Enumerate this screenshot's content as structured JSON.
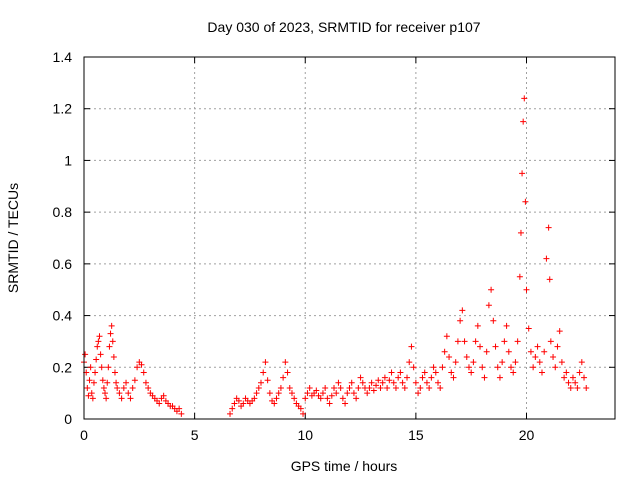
{
  "chart_data": {
    "type": "scatter",
    "title": "Day 030 of 2023, SRMTID for receiver p107",
    "xlabel": "GPS time / hours",
    "ylabel": "SRMTID / TECUs",
    "xlim": [
      0,
      24
    ],
    "ylim": [
      0,
      1.4
    ],
    "grid": true,
    "marker": "+",
    "color": "#ff0000",
    "x_ticks": [
      0,
      5,
      10,
      15,
      20
    ],
    "x_tick_labels": [
      "0",
      "5",
      "10",
      "15",
      "20"
    ],
    "y_ticks": [
      0,
      0.2,
      0.4,
      0.6,
      0.8,
      1.0,
      1.2,
      1.4
    ],
    "y_tick_labels": [
      "0",
      "0.2",
      "0.4",
      "0.6",
      "0.8",
      "1",
      "1.2",
      "1.4"
    ],
    "series": [
      {
        "name": "SRMTID",
        "points": [
          [
            0.0,
            0.22
          ],
          [
            0.05,
            0.25
          ],
          [
            0.1,
            0.18
          ],
          [
            0.15,
            0.12
          ],
          [
            0.2,
            0.09
          ],
          [
            0.25,
            0.15
          ],
          [
            0.3,
            0.2
          ],
          [
            0.35,
            0.1
          ],
          [
            0.4,
            0.08
          ],
          [
            0.45,
            0.14
          ],
          [
            0.5,
            0.18
          ],
          [
            0.55,
            0.23
          ],
          [
            0.6,
            0.28
          ],
          [
            0.65,
            0.3
          ],
          [
            0.7,
            0.32
          ],
          [
            0.75,
            0.25
          ],
          [
            0.8,
            0.2
          ],
          [
            0.85,
            0.15
          ],
          [
            0.9,
            0.12
          ],
          [
            0.95,
            0.1
          ],
          [
            1.0,
            0.08
          ],
          [
            1.05,
            0.14
          ],
          [
            1.1,
            0.2
          ],
          [
            1.15,
            0.28
          ],
          [
            1.2,
            0.33
          ],
          [
            1.25,
            0.36
          ],
          [
            1.3,
            0.3
          ],
          [
            1.35,
            0.24
          ],
          [
            1.4,
            0.18
          ],
          [
            1.45,
            0.14
          ],
          [
            1.5,
            0.12
          ],
          [
            1.6,
            0.1
          ],
          [
            1.7,
            0.08
          ],
          [
            1.8,
            0.12
          ],
          [
            1.9,
            0.14
          ],
          [
            2.0,
            0.1
          ],
          [
            2.1,
            0.08
          ],
          [
            2.2,
            0.12
          ],
          [
            2.3,
            0.15
          ],
          [
            2.4,
            0.2
          ],
          [
            2.5,
            0.22
          ],
          [
            2.6,
            0.21
          ],
          [
            2.7,
            0.18
          ],
          [
            2.8,
            0.14
          ],
          [
            2.9,
            0.12
          ],
          [
            3.0,
            0.1
          ],
          [
            3.1,
            0.09
          ],
          [
            3.2,
            0.08
          ],
          [
            3.3,
            0.07
          ],
          [
            3.4,
            0.06
          ],
          [
            3.5,
            0.08
          ],
          [
            3.6,
            0.09
          ],
          [
            3.7,
            0.07
          ],
          [
            3.8,
            0.06
          ],
          [
            3.9,
            0.05
          ],
          [
            4.0,
            0.05
          ],
          [
            4.1,
            0.04
          ],
          [
            4.2,
            0.03
          ],
          [
            4.3,
            0.04
          ],
          [
            4.4,
            0.02
          ],
          [
            6.6,
            0.02
          ],
          [
            6.7,
            0.04
          ],
          [
            6.8,
            0.06
          ],
          [
            6.9,
            0.08
          ],
          [
            7.0,
            0.07
          ],
          [
            7.1,
            0.05
          ],
          [
            7.2,
            0.06
          ],
          [
            7.3,
            0.08
          ],
          [
            7.4,
            0.07
          ],
          [
            7.5,
            0.06
          ],
          [
            7.6,
            0.07
          ],
          [
            7.7,
            0.08
          ],
          [
            7.8,
            0.1
          ],
          [
            7.9,
            0.12
          ],
          [
            8.0,
            0.14
          ],
          [
            8.1,
            0.18
          ],
          [
            8.2,
            0.22
          ],
          [
            8.3,
            0.15
          ],
          [
            8.4,
            0.1
          ],
          [
            8.5,
            0.07
          ],
          [
            8.6,
            0.06
          ],
          [
            8.7,
            0.08
          ],
          [
            8.8,
            0.1
          ],
          [
            8.9,
            0.12
          ],
          [
            9.0,
            0.16
          ],
          [
            9.1,
            0.22
          ],
          [
            9.2,
            0.18
          ],
          [
            9.3,
            0.12
          ],
          [
            9.4,
            0.1
          ],
          [
            9.5,
            0.08
          ],
          [
            9.6,
            0.06
          ],
          [
            9.7,
            0.05
          ],
          [
            9.8,
            0.04
          ],
          [
            9.9,
            0.02
          ],
          [
            10.0,
            0.08
          ],
          [
            10.1,
            0.1
          ],
          [
            10.2,
            0.12
          ],
          [
            10.3,
            0.09
          ],
          [
            10.4,
            0.1
          ],
          [
            10.5,
            0.11
          ],
          [
            10.6,
            0.09
          ],
          [
            10.7,
            0.08
          ],
          [
            10.8,
            0.1
          ],
          [
            10.9,
            0.12
          ],
          [
            11.0,
            0.08
          ],
          [
            11.1,
            0.06
          ],
          [
            11.2,
            0.09
          ],
          [
            11.3,
            0.12
          ],
          [
            11.4,
            0.1
          ],
          [
            11.5,
            0.14
          ],
          [
            11.6,
            0.12
          ],
          [
            11.7,
            0.08
          ],
          [
            11.8,
            0.06
          ],
          [
            11.9,
            0.1
          ],
          [
            12.0,
            0.12
          ],
          [
            12.1,
            0.14
          ],
          [
            12.2,
            0.1
          ],
          [
            12.3,
            0.08
          ],
          [
            12.4,
            0.12
          ],
          [
            12.5,
            0.16
          ],
          [
            12.6,
            0.14
          ],
          [
            12.7,
            0.12
          ],
          [
            12.8,
            0.1
          ],
          [
            12.9,
            0.12
          ],
          [
            13.0,
            0.14
          ],
          [
            13.1,
            0.11
          ],
          [
            13.2,
            0.13
          ],
          [
            13.3,
            0.15
          ],
          [
            13.4,
            0.12
          ],
          [
            13.5,
            0.14
          ],
          [
            13.6,
            0.16
          ],
          [
            13.7,
            0.12
          ],
          [
            13.8,
            0.15
          ],
          [
            13.9,
            0.18
          ],
          [
            14.0,
            0.14
          ],
          [
            14.1,
            0.12
          ],
          [
            14.2,
            0.16
          ],
          [
            14.3,
            0.18
          ],
          [
            14.4,
            0.14
          ],
          [
            14.5,
            0.12
          ],
          [
            14.6,
            0.16
          ],
          [
            14.7,
            0.22
          ],
          [
            14.8,
            0.28
          ],
          [
            14.9,
            0.2
          ],
          [
            15.0,
            0.14
          ],
          [
            15.1,
            0.1
          ],
          [
            15.2,
            0.12
          ],
          [
            15.3,
            0.16
          ],
          [
            15.4,
            0.18
          ],
          [
            15.5,
            0.14
          ],
          [
            15.6,
            0.12
          ],
          [
            15.7,
            0.16
          ],
          [
            15.8,
            0.2
          ],
          [
            15.9,
            0.18
          ],
          [
            16.0,
            0.14
          ],
          [
            16.1,
            0.12
          ],
          [
            16.2,
            0.2
          ],
          [
            16.3,
            0.26
          ],
          [
            16.4,
            0.32
          ],
          [
            16.5,
            0.24
          ],
          [
            16.6,
            0.18
          ],
          [
            16.7,
            0.16
          ],
          [
            16.8,
            0.22
          ],
          [
            16.9,
            0.3
          ],
          [
            17.0,
            0.38
          ],
          [
            17.1,
            0.42
          ],
          [
            17.2,
            0.3
          ],
          [
            17.3,
            0.24
          ],
          [
            17.4,
            0.2
          ],
          [
            17.5,
            0.18
          ],
          [
            17.6,
            0.22
          ],
          [
            17.7,
            0.3
          ],
          [
            17.8,
            0.36
          ],
          [
            17.9,
            0.28
          ],
          [
            18.0,
            0.2
          ],
          [
            18.1,
            0.16
          ],
          [
            18.2,
            0.26
          ],
          [
            18.3,
            0.44
          ],
          [
            18.4,
            0.5
          ],
          [
            18.5,
            0.38
          ],
          [
            18.6,
            0.28
          ],
          [
            18.7,
            0.2
          ],
          [
            18.8,
            0.16
          ],
          [
            18.9,
            0.22
          ],
          [
            19.0,
            0.3
          ],
          [
            19.1,
            0.36
          ],
          [
            19.2,
            0.26
          ],
          [
            19.3,
            0.2
          ],
          [
            19.4,
            0.18
          ],
          [
            19.5,
            0.22
          ],
          [
            19.6,
            0.3
          ],
          [
            19.7,
            0.55
          ],
          [
            19.75,
            0.72
          ],
          [
            19.8,
            0.95
          ],
          [
            19.85,
            1.15
          ],
          [
            19.9,
            1.24
          ],
          [
            19.95,
            0.84
          ],
          [
            20.0,
            0.5
          ],
          [
            20.1,
            0.35
          ],
          [
            20.2,
            0.26
          ],
          [
            20.3,
            0.2
          ],
          [
            20.4,
            0.24
          ],
          [
            20.5,
            0.28
          ],
          [
            20.6,
            0.22
          ],
          [
            20.7,
            0.18
          ],
          [
            20.8,
            0.26
          ],
          [
            20.9,
            0.62
          ],
          [
            21.0,
            0.74
          ],
          [
            21.05,
            0.54
          ],
          [
            21.1,
            0.3
          ],
          [
            21.2,
            0.24
          ],
          [
            21.3,
            0.2
          ],
          [
            21.4,
            0.28
          ],
          [
            21.5,
            0.34
          ],
          [
            21.6,
            0.22
          ],
          [
            21.7,
            0.16
          ],
          [
            21.8,
            0.18
          ],
          [
            21.9,
            0.14
          ],
          [
            22.0,
            0.12
          ],
          [
            22.1,
            0.16
          ],
          [
            22.2,
            0.14
          ],
          [
            22.3,
            0.12
          ],
          [
            22.4,
            0.18
          ],
          [
            22.5,
            0.22
          ],
          [
            22.6,
            0.16
          ],
          [
            22.7,
            0.12
          ]
        ]
      }
    ]
  }
}
